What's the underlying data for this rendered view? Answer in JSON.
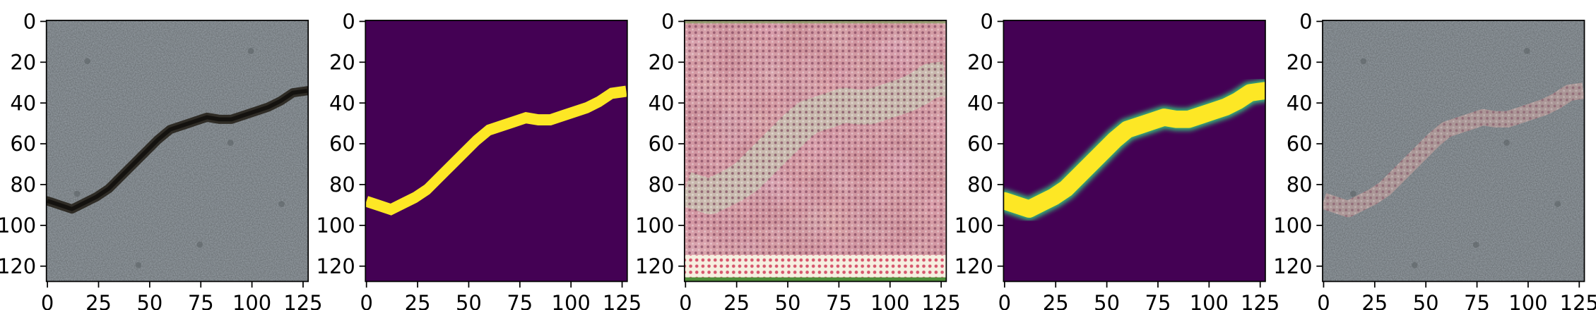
{
  "figure": {
    "panel_count": 5,
    "panels": [
      {
        "id": "input-photo",
        "kind": "photo",
        "description_colors": {
          "base": "#9aa2a8",
          "crack": "#2f2c26"
        },
        "xticks": [
          "0",
          "25",
          "50",
          "75",
          "100",
          "125"
        ],
        "yticks": [
          "0",
          "20",
          "40",
          "60",
          "80",
          "100",
          "120"
        ]
      },
      {
        "id": "ground-truth-mask",
        "kind": "binary-mask",
        "description_colors": {
          "background": "#440154",
          "foreground": "#fde725"
        },
        "xticks": [
          "0",
          "25",
          "50",
          "75",
          "100",
          "125"
        ],
        "yticks": [
          "0",
          "20",
          "40",
          "60",
          "80",
          "100",
          "120"
        ]
      },
      {
        "id": "perturbation",
        "kind": "noise-pattern",
        "description_colors": {
          "base": "#c98b95",
          "band": "#c8c0b0",
          "bottom": "#f4ecdc"
        },
        "xticks": [
          "0",
          "25",
          "50",
          "75",
          "100",
          "125"
        ],
        "yticks": [
          "0",
          "20",
          "40",
          "60",
          "80",
          "100",
          "120"
        ]
      },
      {
        "id": "predicted-mask",
        "kind": "soft-mask",
        "description_colors": {
          "background": "#440154",
          "foreground": "#fde725",
          "edge": "#35b779"
        },
        "xticks": [
          "0",
          "25",
          "50",
          "75",
          "100",
          "125"
        ],
        "yticks": [
          "0",
          "20",
          "40",
          "60",
          "80",
          "100",
          "120"
        ]
      },
      {
        "id": "adversarial-photo",
        "kind": "photo",
        "description_colors": {
          "base": "#9aa2a8",
          "crack": "#c9a3a0"
        },
        "xticks": [
          "0",
          "25",
          "50",
          "75",
          "100",
          "125"
        ],
        "yticks": [
          "0",
          "20",
          "40",
          "60",
          "80",
          "100",
          "120"
        ]
      }
    ],
    "crack_path": [
      [
        0,
        88
      ],
      [
        6,
        90
      ],
      [
        12,
        92
      ],
      [
        18,
        89
      ],
      [
        24,
        86
      ],
      [
        30,
        82
      ],
      [
        36,
        76
      ],
      [
        42,
        70
      ],
      [
        48,
        64
      ],
      [
        54,
        58
      ],
      [
        60,
        53
      ],
      [
        66,
        51
      ],
      [
        72,
        49
      ],
      [
        78,
        47
      ],
      [
        84,
        48
      ],
      [
        90,
        48
      ],
      [
        96,
        46
      ],
      [
        102,
        44
      ],
      [
        108,
        42
      ],
      [
        114,
        39
      ],
      [
        120,
        35
      ],
      [
        127,
        34
      ]
    ]
  }
}
